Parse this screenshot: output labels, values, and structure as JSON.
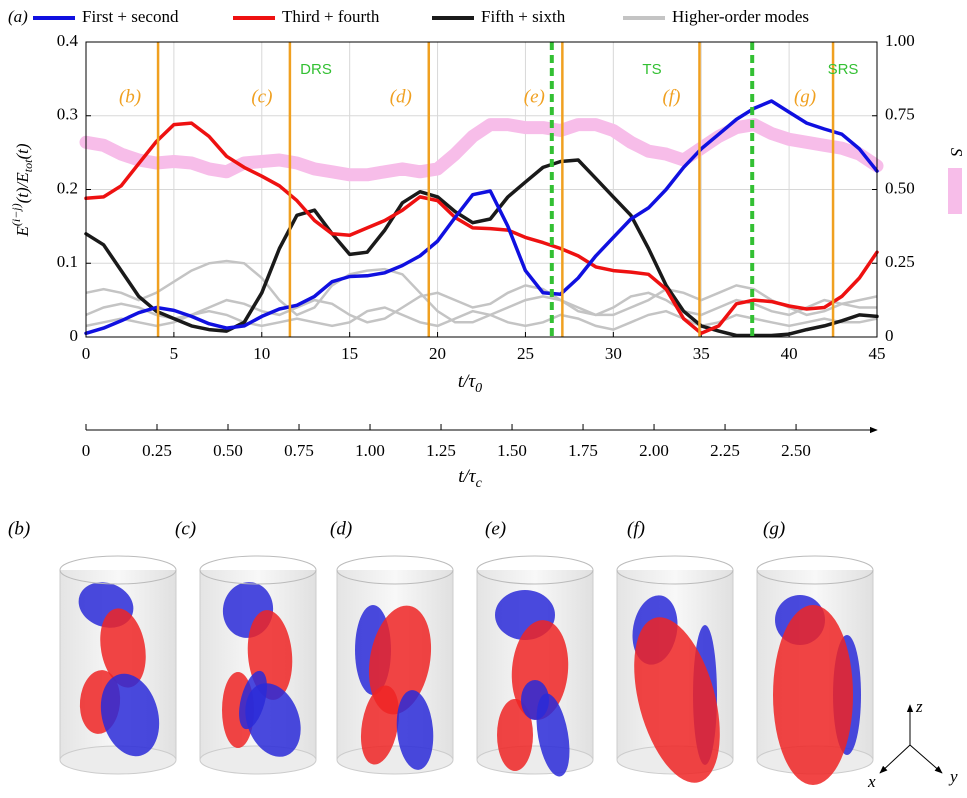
{
  "chart_data": {
    "type": "line",
    "panel_label": "(a)",
    "x": [
      0,
      1,
      2,
      3,
      4,
      5,
      6,
      7,
      8,
      9,
      10,
      11,
      12,
      13,
      14,
      15,
      16,
      17,
      18,
      19,
      20,
      21,
      22,
      23,
      24,
      25,
      26,
      27,
      28,
      29,
      30,
      31,
      32,
      33,
      34,
      35,
      36,
      37,
      38,
      39,
      40,
      41,
      42,
      43,
      44,
      45
    ],
    "xlim": [
      0,
      45
    ],
    "xticks": [
      0,
      5,
      10,
      15,
      20,
      25,
      30,
      35,
      40,
      45
    ],
    "xlabel": [
      "t/τ",
      "0"
    ],
    "ylim": [
      0,
      0.4
    ],
    "yticks": [
      0,
      0.1,
      0.2,
      0.3,
      0.4
    ],
    "ylabel": [
      "E",
      "(i−j)",
      "(t)/E",
      "tot",
      "(t)"
    ],
    "y2lim": [
      0,
      1
    ],
    "y2ticks": [
      0,
      0.25,
      {
        "value": 0.5,
        "label": "0.50"
      },
      0.75,
      {
        "value": 1,
        "label": "1.00"
      }
    ],
    "grid": true,
    "series": [
      {
        "name": "First + second",
        "color": "#1010e0",
        "values": [
          0.005,
          0.012,
          0.022,
          0.033,
          0.04,
          0.036,
          0.028,
          0.018,
          0.012,
          0.015,
          0.028,
          0.038,
          0.043,
          0.055,
          0.075,
          0.082,
          0.083,
          0.087,
          0.097,
          0.11,
          0.13,
          0.162,
          0.193,
          0.198,
          0.15,
          0.09,
          0.06,
          0.058,
          0.08,
          0.11,
          0.135,
          0.16,
          0.175,
          0.2,
          0.23,
          0.255,
          0.275,
          0.295,
          0.31,
          0.32,
          0.305,
          0.29,
          0.282,
          0.275,
          0.255,
          0.225
        ]
      },
      {
        "name": "Third + fourth",
        "color": "#ee1111",
        "values": [
          0.188,
          0.19,
          0.205,
          0.235,
          0.265,
          0.288,
          0.29,
          0.272,
          0.245,
          0.23,
          0.218,
          0.205,
          0.185,
          0.158,
          0.14,
          0.138,
          0.148,
          0.158,
          0.172,
          0.19,
          0.185,
          0.162,
          0.148,
          0.147,
          0.145,
          0.135,
          0.128,
          0.12,
          0.11,
          0.095,
          0.09,
          0.088,
          0.085,
          0.065,
          0.025,
          0.005,
          0.015,
          0.045,
          0.05,
          0.048,
          0.042,
          0.038,
          0.04,
          0.055,
          0.08,
          0.115
        ]
      },
      {
        "name": "Fifth + sixth",
        "color": "#1a1a1a",
        "values": [
          0.14,
          0.125,
          0.09,
          0.055,
          0.035,
          0.025,
          0.015,
          0.01,
          0.008,
          0.02,
          0.06,
          0.12,
          0.165,
          0.172,
          0.14,
          0.112,
          0.115,
          0.145,
          0.182,
          0.197,
          0.19,
          0.17,
          0.155,
          0.16,
          0.19,
          0.21,
          0.23,
          0.238,
          0.24,
          0.215,
          0.19,
          0.165,
          0.12,
          0.07,
          0.035,
          0.015,
          0.008,
          0.002,
          0.002,
          0.002,
          0.004,
          0.01,
          0.015,
          0.022,
          0.03,
          0.028
        ]
      },
      {
        "name": "Higher-order modes",
        "color": "#c4c4c4",
        "values": [
          [
            0.06,
            0.065,
            0.06,
            0.05,
            0.06,
            0.075,
            0.09,
            0.1,
            0.103,
            0.1,
            0.08,
            0.05,
            0.03,
            0.04,
            0.07,
            0.085,
            0.09,
            0.092,
            0.085,
            0.06,
            0.035,
            0.02,
            0.02,
            0.03,
            0.04,
            0.05,
            0.055,
            0.05,
            0.04,
            0.03,
            0.03,
            0.04,
            0.05,
            0.065,
            0.06,
            0.05,
            0.06,
            0.07,
            0.065,
            0.05,
            0.04,
            0.03,
            0.035,
            0.045,
            0.05,
            0.055
          ],
          [
            0.03,
            0.04,
            0.045,
            0.04,
            0.03,
            0.025,
            0.03,
            0.04,
            0.05,
            0.045,
            0.035,
            0.03,
            0.04,
            0.05,
            0.045,
            0.03,
            0.02,
            0.025,
            0.04,
            0.055,
            0.06,
            0.05,
            0.04,
            0.045,
            0.06,
            0.07,
            0.065,
            0.05,
            0.035,
            0.03,
            0.04,
            0.055,
            0.06,
            0.05,
            0.035,
            0.03,
            0.04,
            0.05,
            0.045,
            0.035,
            0.03,
            0.04,
            0.05,
            0.045,
            0.04,
            0.04
          ],
          [
            0.015,
            0.02,
            0.025,
            0.02,
            0.015,
            0.02,
            0.03,
            0.035,
            0.03,
            0.02,
            0.015,
            0.02,
            0.025,
            0.02,
            0.015,
            0.02,
            0.035,
            0.04,
            0.03,
            0.02,
            0.015,
            0.025,
            0.035,
            0.03,
            0.02,
            0.015,
            0.02,
            0.03,
            0.025,
            0.015,
            0.01,
            0.02,
            0.03,
            0.035,
            0.025,
            0.015,
            0.02,
            0.03,
            0.025,
            0.02,
            0.015,
            0.02,
            0.025,
            0.02,
            0.02,
            0.025
          ]
        ]
      },
      {
        "name": "S",
        "color": "#f7bde9",
        "axis": "y2",
        "values": [
          0.66,
          0.65,
          0.62,
          0.6,
          0.59,
          0.595,
          0.59,
          0.57,
          0.56,
          0.59,
          0.595,
          0.6,
          0.59,
          0.57,
          0.56,
          0.55,
          0.55,
          0.56,
          0.57,
          0.56,
          0.57,
          0.62,
          0.68,
          0.72,
          0.72,
          0.71,
          0.71,
          0.7,
          0.72,
          0.72,
          0.7,
          0.66,
          0.63,
          0.62,
          0.6,
          0.64,
          0.68,
          0.71,
          0.72,
          0.69,
          0.67,
          0.66,
          0.65,
          0.64,
          0.62,
          0.58
        ]
      }
    ],
    "markers": [
      {
        "x": 4.1,
        "label": "(b)"
      },
      {
        "x": 11.6,
        "label": "(c)"
      },
      {
        "x": 19.5,
        "label": "(d)"
      },
      {
        "x": 27.1,
        "label": "(e)"
      },
      {
        "x": 34.9,
        "label": "(f)"
      },
      {
        "x": 42.5,
        "label": "(g)"
      }
    ],
    "marker_color": "#f0a020",
    "regime_boundaries": [
      26.5,
      37.9
    ],
    "regime_color": "#33c033",
    "regime_labels": [
      "DRS",
      "TS",
      "SRS"
    ],
    "x2label": [
      "t/τ",
      "c"
    ],
    "x2lim": [
      0,
      2.785
    ],
    "x2ticks": [
      0,
      0.25,
      {
        "value": 0.5,
        "label": "0.50"
      },
      0.75,
      {
        "value": 1,
        "label": "1.00"
      },
      1.25,
      {
        "value": 1.5,
        "label": "1.50"
      },
      1.75,
      {
        "value": 2,
        "label": "2.00"
      },
      2.25,
      {
        "value": 2.5,
        "label": "2.50"
      }
    ]
  },
  "panels": [
    "(b)",
    "(c)",
    "(d)",
    "(e)",
    "(f)",
    "(g)"
  ],
  "triad": [
    "x",
    "y",
    "z"
  ]
}
